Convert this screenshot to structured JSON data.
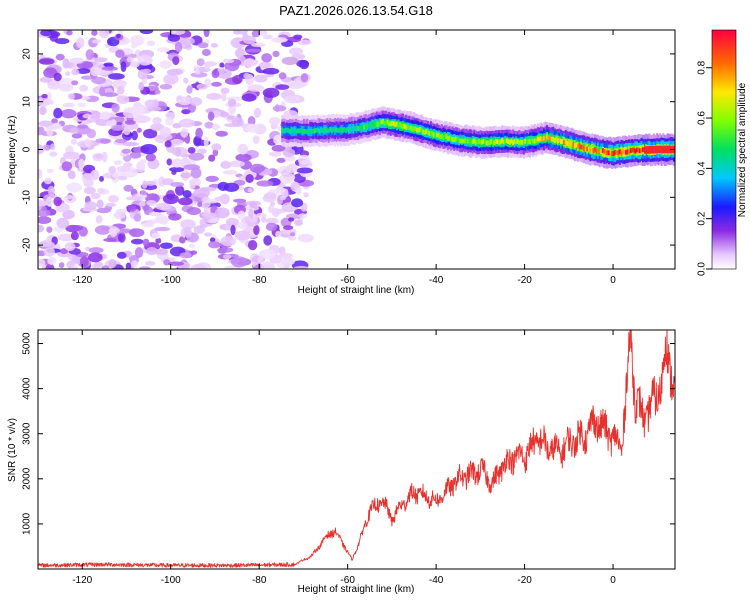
{
  "title": "PAZ1.2026.026.13.54.G18",
  "chart_data": [
    {
      "type": "heatmap",
      "title": "PAZ1.2026.026.13.54.G18",
      "xlabel": "Height of straight line (km)",
      "ylabel": "Frequency (Hz)",
      "xlim": [
        -130,
        14
      ],
      "ylim": [
        -25,
        25
      ],
      "xticks": [
        -120,
        -100,
        -80,
        -60,
        -40,
        -20,
        0
      ],
      "yticks": [
        -20,
        -10,
        0,
        10,
        20
      ],
      "grid": false,
      "noise_region_km": [
        -130,
        -71
      ],
      "signal_start_km": -75,
      "signal_trace": {
        "x_km": [
          -75,
          -70,
          -65,
          -60,
          -55,
          -52,
          -48,
          -45,
          -40,
          -35,
          -30,
          -25,
          -20,
          -15,
          -10,
          -5,
          0,
          5,
          10,
          14
        ],
        "freq_hz": [
          4,
          3.8,
          4,
          4.1,
          5,
          5.7,
          5,
          4.4,
          3,
          2,
          1.5,
          1.7,
          1.5,
          2.5,
          1.3,
          0,
          -0.8,
          -0.2,
          0,
          0
        ],
        "amplitude": [
          0.45,
          0.45,
          0.45,
          0.45,
          0.5,
          0.6,
          0.62,
          0.6,
          0.58,
          0.58,
          0.6,
          0.62,
          0.6,
          0.7,
          0.75,
          0.8,
          0.85,
          0.9,
          0.92,
          0.92
        ]
      },
      "colorbar": {
        "label": "Normalized spectral amplitude",
        "range": [
          0,
          0.95
        ],
        "ticks": [
          "0.0",
          "0.2",
          "0.4",
          "0.6",
          "0.8"
        ],
        "tick_values": [
          0.0,
          0.2,
          0.4,
          0.6,
          0.8
        ],
        "colormap": "rainbow_white_to_red"
      }
    },
    {
      "type": "line",
      "xlabel": "Height of straight line (km)",
      "ylabel": "SNR (10 * v/v)",
      "xlim": [
        -130,
        14
      ],
      "ylim": [
        0,
        5300
      ],
      "xticks": [
        -120,
        -100,
        -80,
        -60,
        -40,
        -20,
        0
      ],
      "yticks": [
        1000,
        2000,
        3000,
        4000,
        5000
      ],
      "grid": false,
      "series": [
        {
          "name": "SNR",
          "color": "#e8302c",
          "x": [
            -130,
            -115,
            -100,
            -85,
            -72,
            -68,
            -65,
            -63,
            -61,
            -59,
            -57,
            -55,
            -52,
            -50,
            -48,
            -45,
            -42,
            -40,
            -37,
            -35,
            -32,
            -30,
            -27,
            -25,
            -22,
            -20,
            -17,
            -15,
            -12,
            -10,
            -8,
            -6,
            -4,
            -2,
            0,
            2,
            3,
            4,
            5,
            7,
            9,
            11,
            12,
            14
          ],
          "y": [
            80,
            100,
            80,
            80,
            100,
            300,
            700,
            850,
            550,
            200,
            700,
            1300,
            1500,
            1100,
            1400,
            1700,
            1600,
            1500,
            1800,
            2000,
            2100,
            2200,
            1900,
            2300,
            2500,
            2500,
            2900,
            2700,
            2600,
            2800,
            2900,
            3000,
            3300,
            3100,
            2900,
            2700,
            4000,
            5200,
            3800,
            3300,
            3700,
            4100,
            5000,
            3900
          ]
        }
      ]
    }
  ],
  "colors": {
    "snr_line": "#e8302c",
    "noise_purple": "#7b1fe6",
    "axis": "#000000"
  }
}
